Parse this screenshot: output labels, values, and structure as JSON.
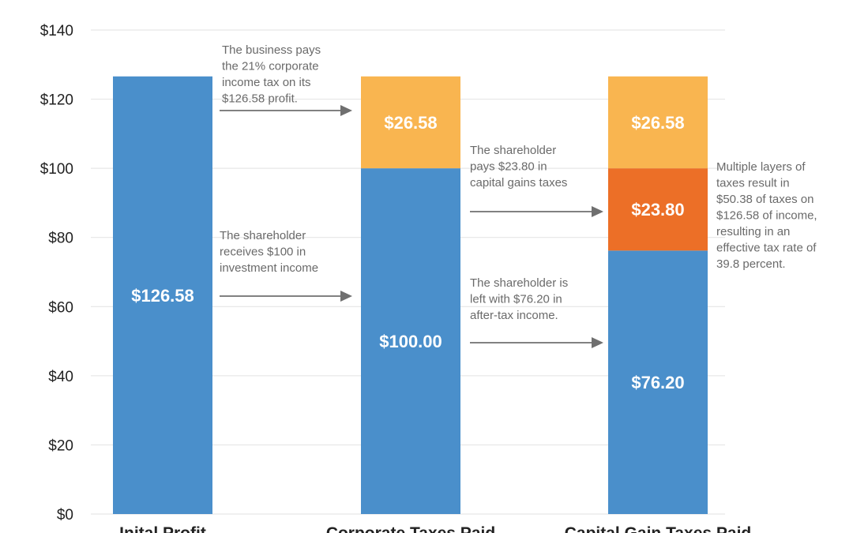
{
  "chart_data": {
    "type": "bar",
    "stacked": true,
    "categories": [
      "Inital Profit",
      "Corporate Taxes Paid",
      "Capital Gain Taxes Paid"
    ],
    "ylim": [
      0,
      140
    ],
    "y_ticks": [
      0,
      20,
      40,
      60,
      80,
      100,
      120,
      140
    ],
    "y_tick_labels": [
      "$0",
      "$20",
      "$40",
      "$60",
      "$80",
      "$100",
      "$120",
      "$140"
    ],
    "grid": true,
    "series": [
      {
        "values": [
          126.58,
          100.0,
          76.2
        ],
        "labels": [
          "$126.58",
          "$100.00",
          "$76.20"
        ],
        "color": "#4a8fcb"
      },
      {
        "values": [
          0,
          0,
          23.8
        ],
        "labels": [
          "",
          "",
          "$23.80"
        ],
        "color": "#ec6f27"
      },
      {
        "values": [
          0,
          26.58,
          26.58
        ],
        "labels": [
          "",
          "$26.58",
          "$26.58"
        ],
        "color": "#f9b550"
      }
    ],
    "annotations": [
      {
        "lines": [
          "The business pays",
          "the 21% corporate",
          "income tax on its",
          "$126.58 profit."
        ]
      },
      {
        "lines": [
          "The shareholder",
          "receives $100 in",
          "investment income"
        ]
      },
      {
        "lines": [
          "The shareholder",
          "pays $23.80 in",
          "capital gains taxes"
        ]
      },
      {
        "lines": [
          "The shareholder is",
          "left with $76.20 in",
          "after-tax income."
        ]
      },
      {
        "lines": [
          "Multiple layers of",
          "taxes result in",
          "$50.38 of taxes on",
          "$126.58 of income,",
          "resulting in an",
          "effective tax rate of",
          "39.8 percent."
        ]
      }
    ],
    "colors": {
      "grid": "#e2e2e2",
      "arrow": "#6f6f6f",
      "text": "#222222",
      "annotation": "#6a6a6a"
    }
  }
}
